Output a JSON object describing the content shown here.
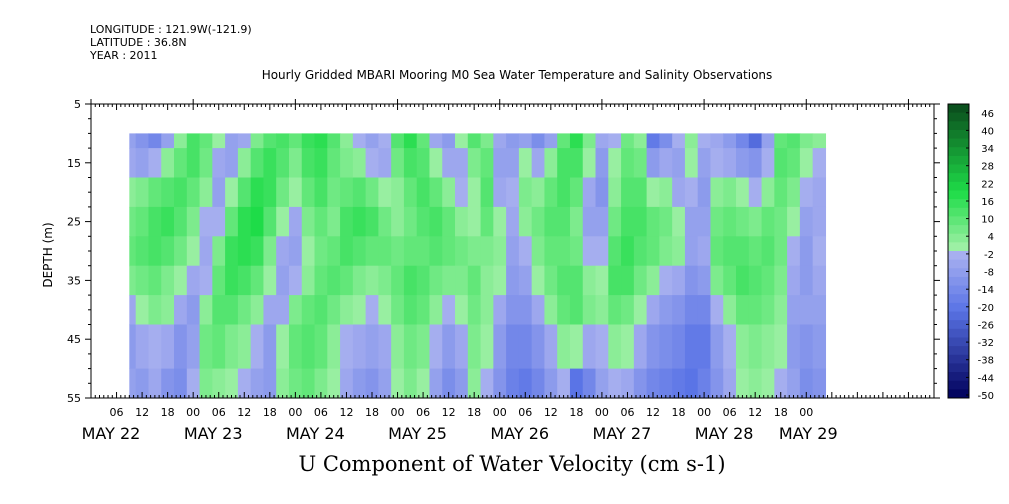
{
  "header": {
    "longitude": "LONGITUDE : 121.9W(-121.9)",
    "latitude": "LATITUDE : 36.8N",
    "year": "YEAR : 2011"
  },
  "colors": {
    "negative_max": "#00005a",
    "negative_mid": "#5a74e6",
    "near_zero_negative": "#a9b1f0",
    "near_zero_positive": "#9ff0a6",
    "positive_mid": "#1edc48",
    "positive_max": "#0a4a1c",
    "missing": "#ffffff"
  },
  "chart_data": {
    "type": "heatmap",
    "title": "Hourly Gridded MBARI Mooring M0 Sea Water Temperature and Salinity Observations",
    "xlabel": "",
    "ylabel": "DEPTH (m)",
    "colorbar_label": "U Component of Water Velocity (cm s-1)",
    "y_axis": {
      "range": [
        5,
        55
      ],
      "inverted": true,
      "ticks": [
        "5",
        "15",
        "25",
        "35",
        "45",
        "55"
      ],
      "data_start_depth": 10
    },
    "x_axis": {
      "range_hours_from_may21": [
        72,
        270
      ],
      "hour_ticks": [
        "06",
        "12",
        "18",
        "00",
        "06",
        "12",
        "18",
        "00",
        "06",
        "12",
        "18",
        "00",
        "06",
        "12",
        "18",
        "00",
        "06",
        "12",
        "18",
        "00",
        "06",
        "12",
        "18",
        "00",
        "06",
        "12",
        "18",
        "00"
      ],
      "day_labels": [
        "MAY 22",
        "MAY 23",
        "MAY 24",
        "MAY 25",
        "MAY 26",
        "MAY 27",
        "MAY 28",
        "MAY 29"
      ],
      "data_start_day": "MAY 22"
    },
    "colorbar": {
      "levels": [
        "46",
        "40",
        "34",
        "28",
        "22",
        "16",
        "10",
        "4",
        "-2",
        "-8",
        "-14",
        "-20",
        "-26",
        "-32",
        "-38",
        "-44",
        "-50"
      ],
      "range": [
        -50,
        50
      ]
    },
    "columns": [
      {
        "x": "May 22 09:00",
        "v": [
          -6,
          -4,
          4,
          8,
          10,
          6,
          -4,
          -8,
          -6
        ]
      },
      {
        "x": "May 22 12:00",
        "v": [
          -10,
          -6,
          6,
          10,
          12,
          8,
          2,
          -4,
          -8
        ]
      },
      {
        "x": "May 22 15:00",
        "v": [
          -14,
          -2,
          10,
          14,
          14,
          10,
          6,
          -2,
          -4
        ]
      },
      {
        "x": "May 22 18:00",
        "v": [
          -6,
          4,
          12,
          16,
          12,
          6,
          4,
          -4,
          -10
        ]
      },
      {
        "x": "May 22 21:00",
        "v": [
          4,
          10,
          14,
          12,
          8,
          2,
          -4,
          -10,
          -12
        ]
      },
      {
        "x": "May 23 00:00",
        "v": [
          14,
          14,
          10,
          6,
          2,
          -4,
          -8,
          -6,
          -2
        ]
      },
      {
        "x": "May 23 03:00",
        "v": [
          10,
          8,
          4,
          -2,
          -4,
          -2,
          4,
          8,
          6
        ]
      },
      {
        "x": "May 23 06:00",
        "v": [
          2,
          -4,
          -6,
          -2,
          6,
          10,
          12,
          10,
          4
        ]
      },
      {
        "x": "May 23 09:00",
        "v": [
          -6,
          -6,
          2,
          10,
          16,
          16,
          12,
          6,
          2
        ]
      },
      {
        "x": "May 23 12:00",
        "v": [
          -4,
          4,
          12,
          18,
          18,
          14,
          8,
          4,
          -2
        ]
      },
      {
        "x": "May 23 15:00",
        "v": [
          6,
          12,
          18,
          20,
          16,
          10,
          4,
          -2,
          -6
        ]
      },
      {
        "x": "May 23 18:00",
        "v": [
          12,
          16,
          16,
          12,
          6,
          2,
          -4,
          -8,
          -8
        ]
      },
      {
        "x": "May 23 21:00",
        "v": [
          14,
          12,
          8,
          2,
          -4,
          -6,
          -4,
          2,
          4
        ]
      },
      {
        "x": "May 24 00:00",
        "v": [
          10,
          6,
          2,
          -4,
          -6,
          -2,
          6,
          10,
          8
        ]
      },
      {
        "x": "May 24 03:00",
        "v": [
          16,
          14,
          10,
          6,
          2,
          4,
          10,
          12,
          10
        ]
      },
      {
        "x": "May 24 06:00",
        "v": [
          18,
          16,
          14,
          10,
          8,
          10,
          12,
          10,
          6
        ]
      },
      {
        "x": "May 24 09:00",
        "v": [
          12,
          10,
          8,
          6,
          10,
          12,
          8,
          4,
          2
        ]
      },
      {
        "x": "May 24 12:00",
        "v": [
          4,
          6,
          10,
          14,
          14,
          10,
          4,
          -2,
          -4
        ]
      },
      {
        "x": "May 24 15:00",
        "v": [
          -2,
          4,
          12,
          16,
          12,
          6,
          2,
          -4,
          -8
        ]
      },
      {
        "x": "May 24 18:00",
        "v": [
          -6,
          -2,
          8,
          14,
          10,
          4,
          -2,
          -6,
          -10
        ]
      },
      {
        "x": "May 24 21:00",
        "v": [
          -2,
          -4,
          2,
          8,
          10,
          6,
          2,
          -4,
          -6
        ]
      },
      {
        "x": "May 25 00:00",
        "v": [
          12,
          8,
          4,
          4,
          8,
          10,
          8,
          4,
          2
        ]
      },
      {
        "x": "May 25 03:00",
        "v": [
          18,
          14,
          10,
          8,
          10,
          14,
          12,
          8,
          6
        ]
      },
      {
        "x": "May 25 06:00",
        "v": [
          10,
          12,
          14,
          12,
          10,
          12,
          10,
          6,
          2
        ]
      },
      {
        "x": "May 25 09:00",
        "v": [
          -4,
          2,
          10,
          14,
          12,
          8,
          4,
          -2,
          -6
        ]
      },
      {
        "x": "May 25 12:00",
        "v": [
          -8,
          -4,
          4,
          10,
          10,
          6,
          -2,
          -8,
          -12
        ]
      },
      {
        "x": "May 25 15:00",
        "v": [
          2,
          -4,
          -2,
          4,
          8,
          6,
          2,
          -4,
          -8
        ]
      },
      {
        "x": "May 25 18:00",
        "v": [
          12,
          6,
          2,
          2,
          6,
          10,
          8,
          6,
          4
        ]
      },
      {
        "x": "May 25 21:00",
        "v": [
          6,
          10,
          12,
          10,
          6,
          4,
          4,
          2,
          -2
        ]
      },
      {
        "x": "May 26 00:00",
        "v": [
          -4,
          -6,
          -4,
          2,
          4,
          2,
          -4,
          -8,
          -10
        ]
      },
      {
        "x": "May 26 03:00",
        "v": [
          -8,
          -6,
          -2,
          -4,
          -6,
          -8,
          -10,
          -14,
          -16
        ]
      },
      {
        "x": "May 26 06:00",
        "v": [
          -6,
          2,
          6,
          4,
          -2,
          -6,
          -10,
          -14,
          -18
        ]
      },
      {
        "x": "May 26 09:00",
        "v": [
          -12,
          -4,
          4,
          8,
          6,
          2,
          -4,
          -10,
          -14
        ]
      },
      {
        "x": "May 26 12:00",
        "v": [
          -6,
          4,
          10,
          12,
          10,
          8,
          4,
          -4,
          -8
        ]
      },
      {
        "x": "May 26 15:00",
        "v": [
          10,
          14,
          14,
          12,
          10,
          12,
          10,
          4,
          -2
        ]
      },
      {
        "x": "May 26 18:00",
        "v": [
          18,
          14,
          10,
          6,
          8,
          12,
          12,
          2,
          -20
        ]
      },
      {
        "x": "May 26 21:00",
        "v": [
          6,
          2,
          -4,
          -6,
          -2,
          4,
          6,
          -4,
          -14
        ]
      },
      {
        "x": "May 27 00:00",
        "v": [
          -4,
          -8,
          -10,
          -6,
          -2,
          2,
          4,
          -2,
          -6
        ]
      },
      {
        "x": "May 27 03:00",
        "v": [
          -2,
          2,
          4,
          8,
          12,
          14,
          10,
          4,
          -2
        ]
      },
      {
        "x": "May 27 06:00",
        "v": [
          8,
          10,
          12,
          14,
          16,
          14,
          8,
          2,
          -4
        ]
      },
      {
        "x": "May 27 09:00",
        "v": [
          4,
          8,
          12,
          14,
          12,
          8,
          2,
          -4,
          -10
        ]
      },
      {
        "x": "May 27 12:00",
        "v": [
          -18,
          -8,
          2,
          10,
          10,
          4,
          -4,
          -10,
          -14
        ]
      },
      {
        "x": "May 27 15:00",
        "v": [
          -12,
          -4,
          4,
          8,
          6,
          -2,
          -8,
          -12,
          -16
        ]
      },
      {
        "x": "May 27 18:00",
        "v": [
          -2,
          -6,
          -4,
          2,
          4,
          -4,
          -10,
          -14,
          -18
        ]
      },
      {
        "x": "May 27 21:00",
        "v": [
          4,
          2,
          -2,
          -6,
          -6,
          -10,
          -14,
          -18,
          -20
        ]
      },
      {
        "x": "May 28 00:00",
        "v": [
          -2,
          -6,
          -8,
          -6,
          -4,
          -8,
          -14,
          -18,
          -16
        ]
      },
      {
        "x": "May 28 03:00",
        "v": [
          -4,
          -2,
          4,
          8,
          10,
          6,
          -2,
          -8,
          -10
        ]
      },
      {
        "x": "May 28 06:00",
        "v": [
          -8,
          -4,
          6,
          10,
          12,
          10,
          4,
          -2,
          -4
        ]
      },
      {
        "x": "May 28 09:00",
        "v": [
          -14,
          -8,
          2,
          8,
          12,
          14,
          10,
          4,
          2
        ]
      },
      {
        "x": "May 28 12:00",
        "v": [
          -22,
          -10,
          -2,
          6,
          10,
          12,
          10,
          6,
          4
        ]
      },
      {
        "x": "May 28 15:00",
        "v": [
          -6,
          -2,
          4,
          10,
          12,
          10,
          8,
          4,
          2
        ]
      },
      {
        "x": "May 28 18:00",
        "v": [
          10,
          12,
          10,
          8,
          8,
          6,
          4,
          2,
          -2
        ]
      },
      {
        "x": "May 28 21:00",
        "v": [
          12,
          10,
          6,
          2,
          -2,
          -4,
          -6,
          -8,
          -6
        ]
      },
      {
        "x": "May 29 00:00",
        "v": [
          6,
          2,
          -2,
          -6,
          -8,
          -8,
          -6,
          -10,
          -12
        ]
      },
      {
        "x": "May 29 03:00",
        "v": [
          4,
          -2,
          -4,
          -4,
          -2,
          -4,
          -6,
          -8,
          -10
        ]
      }
    ],
    "depth_levels_m": [
      10,
      15,
      20,
      25,
      30,
      35,
      40,
      45,
      55
    ]
  }
}
